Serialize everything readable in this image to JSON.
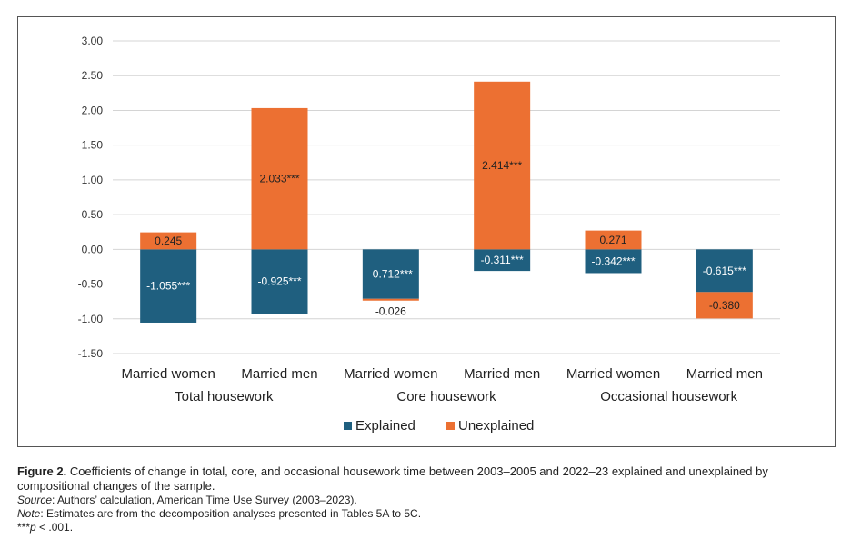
{
  "chart_data": {
    "type": "bar",
    "stacked": true,
    "yticks": [
      "3.00",
      "2.50",
      "2.00",
      "1.50",
      "1.00",
      "0.50",
      "0.00",
      "-0.50",
      "-1.00",
      "-1.50"
    ],
    "ylim": [
      -1.5,
      3.0
    ],
    "grid": true,
    "legend_position": "bottom",
    "groups": [
      {
        "label": "Total housework",
        "categories": [
          "Married women",
          "Married men"
        ]
      },
      {
        "label": "Core housework",
        "categories": [
          "Married women",
          "Married men"
        ]
      },
      {
        "label": "Occasional housework",
        "categories": [
          "Married women",
          "Married men"
        ]
      }
    ],
    "categories": [
      "Married women",
      "Married men",
      "Married women",
      "Married men",
      "Married women",
      "Married men"
    ],
    "series": [
      {
        "name": "Explained",
        "color": "#1f5f7f",
        "values": [
          -1.055,
          -0.925,
          -0.712,
          -0.311,
          -0.342,
          -0.615
        ],
        "labels": [
          "-1.055***",
          "-0.925***",
          "-0.712***",
          "-0.311***",
          "-0.342***",
          "-0.615***"
        ]
      },
      {
        "name": "Unexplained",
        "color": "#ec7032",
        "values": [
          0.245,
          2.033,
          -0.026,
          2.414,
          0.271,
          -0.38
        ],
        "labels": [
          "0.245",
          "2.033***",
          "-0.026",
          "2.414***",
          "0.271",
          "-0.380"
        ]
      }
    ]
  },
  "caption": {
    "figure_label": "Figure 2.",
    "text": "Coefficients of change in total, core, and occasional housework time between 2003–2005 and 2022–23 explained and unexplained by compositional changes of the sample.",
    "source_label": "Source",
    "source_text": ": Authors’ calculation, American Time Use Survey (2003–2023).",
    "note_label": "Note",
    "note_text": ": Estimates are from the decomposition analyses presented in Tables 5A to 5C.",
    "sig_stars": "***",
    "sig_p": "p",
    "sig_text": " < .001."
  }
}
